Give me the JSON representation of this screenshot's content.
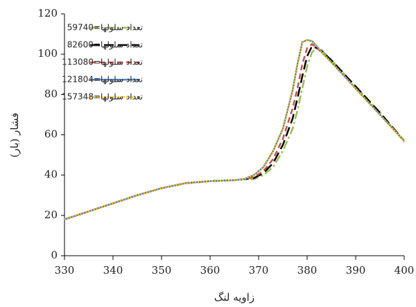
{
  "chart_data": {
    "type": "line",
    "x_label": "زاویه لنگ",
    "y_label": "فشار (بار)",
    "x": [
      330,
      335,
      340,
      345,
      350,
      355,
      360,
      365,
      367,
      369,
      371,
      373,
      375,
      377,
      378,
      379,
      380,
      381,
      382,
      383,
      385,
      390,
      395,
      400
    ],
    "series": [
      {
        "name": "تعداد سلولها=59740",
        "color": "#9bbb59",
        "dash": "12,4,3,4",
        "values": [
          18,
          22,
          26,
          30,
          33.5,
          36,
          37,
          37.5,
          38,
          38,
          40,
          44,
          52,
          63,
          72,
          83,
          94,
          101,
          103,
          102,
          97,
          84,
          71,
          56.5
        ]
      },
      {
        "name": "تعداد سلولها=82600",
        "color": "#000000",
        "dash": "14,6",
        "values": [
          18,
          22,
          26,
          30,
          33.5,
          36,
          37,
          37.5,
          38,
          38.5,
          41,
          46,
          55,
          68,
          78,
          89,
          99,
          104,
          103,
          101.5,
          97,
          84,
          71,
          57
        ]
      },
      {
        "name": "تعداد سلولها=113080",
        "color": "#c0504d",
        "dash": "8,5",
        "values": [
          18,
          22,
          26,
          30,
          33.5,
          36,
          37,
          37.5,
          38,
          39,
          42,
          48,
          58,
          73,
          83,
          95,
          103,
          105,
          103,
          101,
          96,
          83,
          70,
          57
        ]
      },
      {
        "name": "تعداد سلولها=121804",
        "color": "#4f81bd",
        "dash": "",
        "values": [
          18,
          22,
          26,
          30,
          33.5,
          36,
          37,
          37.5,
          38,
          40,
          44,
          52,
          63,
          82,
          95,
          106,
          107,
          106.5,
          104,
          101,
          96,
          83,
          70,
          57
        ]
      },
      {
        "name": "تعداد سلولها=157348",
        "color": "#ffc000",
        "dash": "2,2",
        "values": [
          18,
          22,
          26,
          30,
          33.5,
          36,
          37,
          37.5,
          38,
          40,
          44,
          52,
          63,
          82,
          95,
          106,
          107,
          106.5,
          104,
          101,
          96,
          83,
          70,
          57
        ]
      }
    ],
    "xlim": [
      330,
      400
    ],
    "xticks": [
      330,
      340,
      350,
      360,
      370,
      380,
      390,
      400
    ],
    "ylim": [
      0,
      120
    ],
    "yticks": [
      0,
      20,
      40,
      60,
      80,
      100,
      120
    ]
  }
}
